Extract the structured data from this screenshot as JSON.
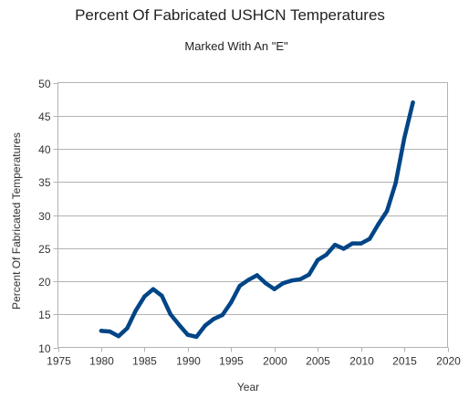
{
  "chart_data": {
    "type": "line",
    "title": "Percent Of Fabricated USHCN Temperatures",
    "subtitle": "Marked With An \"E\"",
    "xlabel": "Year",
    "ylabel": "Percent Of Fabricated Temperatures",
    "xlim": [
      1975,
      2020
    ],
    "ylim": [
      10,
      50
    ],
    "xticks": [
      1975,
      1980,
      1985,
      1990,
      1995,
      2000,
      2005,
      2010,
      2015,
      2020
    ],
    "yticks": [
      10,
      15,
      20,
      25,
      30,
      35,
      40,
      45,
      50
    ],
    "grid": "horizontal",
    "line_color": "#004586",
    "series": [
      {
        "x": [
          1980,
          1981,
          1982,
          1983,
          1984,
          1985,
          1986,
          1987,
          1988,
          1989,
          1990,
          1991,
          1992,
          1993,
          1994,
          1995,
          1996,
          1997,
          1998,
          1999,
          2000,
          2001,
          2002,
          2003,
          2004,
          2005,
          2006,
          2007,
          2008,
          2009,
          2010,
          2011,
          2012,
          2013,
          2014,
          2015,
          2016
        ],
        "y": [
          12.5,
          12.4,
          11.7,
          12.9,
          15.6,
          17.7,
          18.8,
          17.8,
          15.0,
          13.4,
          11.9,
          11.6,
          13.3,
          14.3,
          14.9,
          16.8,
          19.3,
          20.2,
          20.9,
          19.7,
          18.8,
          19.7,
          20.1,
          20.3,
          21.0,
          23.2,
          24.0,
          25.5,
          24.9,
          25.7,
          25.7,
          26.4,
          28.6,
          30.6,
          34.8,
          41.6,
          47.0
        ]
      }
    ]
  }
}
